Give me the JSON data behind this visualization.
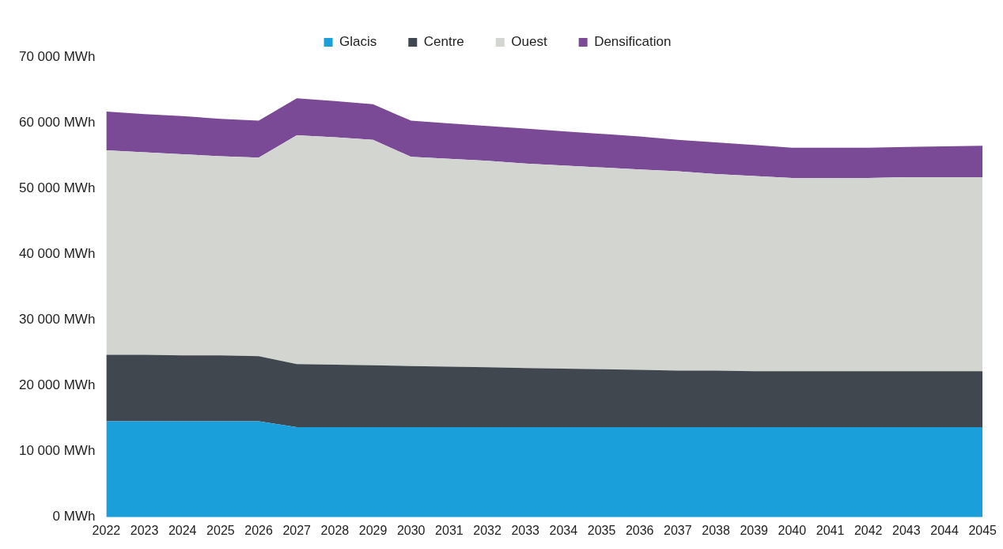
{
  "chart_data": {
    "type": "area",
    "stacked": true,
    "legend": "top",
    "grid": false,
    "categories": [
      "2022",
      "2023",
      "2024",
      "2025",
      "2026",
      "2027",
      "2028",
      "2029",
      "2030",
      "2031",
      "2032",
      "2033",
      "2034",
      "2035",
      "2036",
      "2037",
      "2038",
      "2039",
      "2040",
      "2041",
      "2042",
      "2043",
      "2044",
      "2045"
    ],
    "ylim": [
      0,
      70000
    ],
    "yticks": [
      {
        "value": 0,
        "label": "0 MWh"
      },
      {
        "value": 10000,
        "label": "10 000 MWh"
      },
      {
        "value": 20000,
        "label": "20 000 MWh"
      },
      {
        "value": 30000,
        "label": "30 000 MWh"
      },
      {
        "value": 40000,
        "label": "40 000 MWh"
      },
      {
        "value": 50000,
        "label": "50 000 MWh"
      },
      {
        "value": 60000,
        "label": "60 000 MWh"
      },
      {
        "value": 70000,
        "label": "70 000 MWh"
      }
    ],
    "series": [
      {
        "name": "Glacis",
        "color": "#1a9fdb",
        "values": [
          14600,
          14600,
          14600,
          14600,
          14600,
          13700,
          13700,
          13700,
          13700,
          13700,
          13700,
          13700,
          13700,
          13700,
          13700,
          13700,
          13700,
          13700,
          13700,
          13700,
          13700,
          13700,
          13700,
          13700
        ]
      },
      {
        "name": "Centre",
        "color": "#41474f",
        "values": [
          10100,
          10100,
          10000,
          10000,
          9900,
          9600,
          9500,
          9400,
          9300,
          9200,
          9100,
          9000,
          8900,
          8800,
          8700,
          8600,
          8600,
          8500,
          8500,
          8500,
          8500,
          8500,
          8500,
          8500
        ]
      },
      {
        "name": "Ouest",
        "color": "#d3d6d0",
        "values": [
          31100,
          30800,
          30600,
          30300,
          30200,
          34800,
          34600,
          34300,
          31800,
          31600,
          31400,
          31100,
          30900,
          30700,
          30500,
          30300,
          29900,
          29700,
          29400,
          29400,
          29400,
          29500,
          29500,
          29500
        ]
      },
      {
        "name": "Densification",
        "color": "#7b4a96",
        "values": [
          5900,
          5800,
          5800,
          5700,
          5600,
          5600,
          5500,
          5400,
          5500,
          5400,
          5300,
          5300,
          5200,
          5100,
          5000,
          4800,
          4800,
          4700,
          4600,
          4600,
          4600,
          4600,
          4700,
          4800
        ]
      }
    ]
  }
}
